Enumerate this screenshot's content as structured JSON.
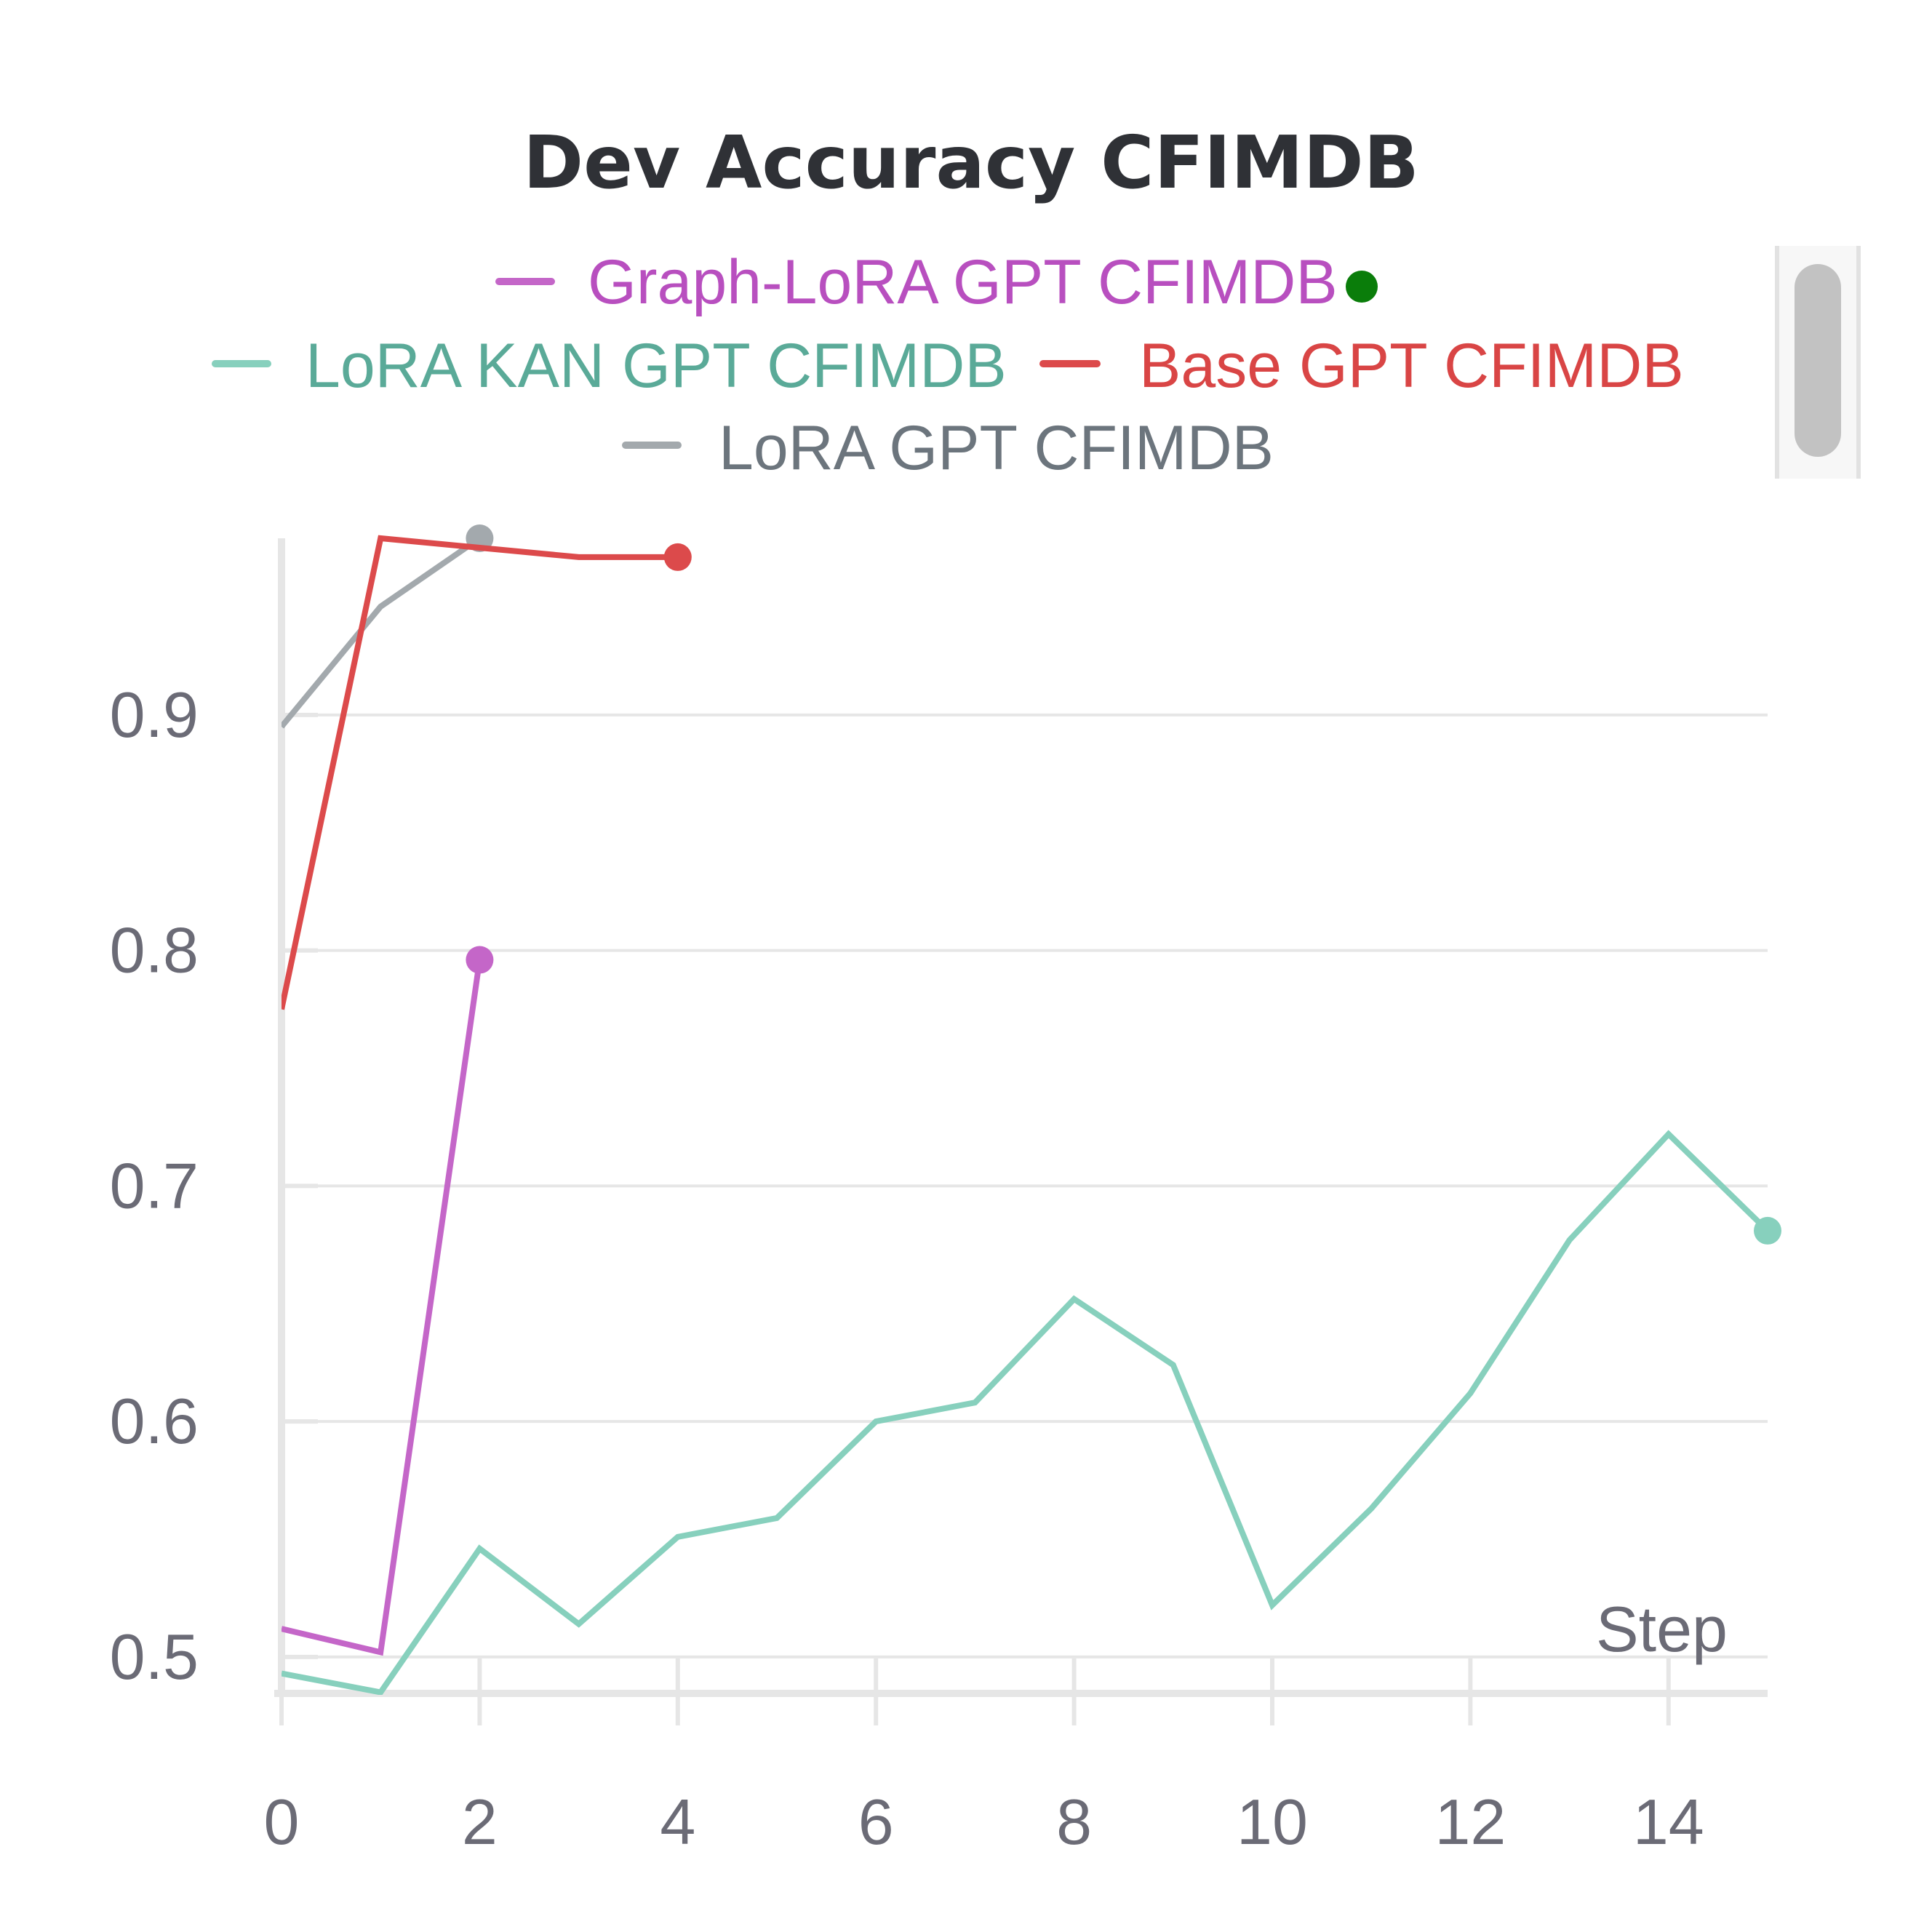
{
  "chart_data": {
    "type": "line",
    "title": "Dev Accuracy CFIMDB",
    "xlabel": "Step",
    "ylabel": "",
    "xlim": [
      0,
      15
    ],
    "ylim": [
      0.487,
      0.975
    ],
    "x_ticks": [
      0,
      2,
      4,
      6,
      8,
      10,
      12,
      14
    ],
    "y_ticks": [
      0.5,
      0.6,
      0.7,
      0.8,
      0.9
    ],
    "y_tick_labels": [
      "0.5",
      "0.6",
      "0.7",
      "0.8",
      "0.9"
    ],
    "grid": true,
    "legend_position": "top",
    "legend_status_dot_color": "#0a7d0a",
    "series": [
      {
        "name": "Graph-LoRA GPT CFIMDB",
        "color": "#c466c8",
        "text_color": "#b84fbf",
        "x": [
          0,
          1,
          2
        ],
        "y": [
          0.512,
          0.502,
          0.796
        ]
      },
      {
        "name": "LoRA KAN GPT CFIMDB",
        "color": "#87d0bd",
        "text_color": "#5aaa98",
        "x": [
          0,
          1,
          2,
          3,
          4,
          5,
          6,
          7,
          8,
          9,
          10,
          11,
          12,
          13,
          14,
          15
        ],
        "y": [
          0.493,
          0.485,
          0.546,
          0.514,
          0.551,
          0.559,
          0.6,
          0.608,
          0.652,
          0.624,
          0.522,
          0.563,
          0.612,
          0.677,
          0.722,
          0.681
        ]
      },
      {
        "name": "Base GPT CFIMDB",
        "color": "#dc4a4b",
        "text_color": "#d94545",
        "x": [
          0,
          1,
          2,
          3,
          4
        ],
        "y": [
          0.775,
          0.975,
          0.971,
          0.967,
          0.967
        ]
      },
      {
        "name": "LoRA GPT CFIMDB",
        "color": "#a3a9ad",
        "text_color": "#6c757d",
        "x": [
          0,
          1,
          2
        ],
        "y": [
          0.895,
          0.946,
          0.975
        ]
      }
    ]
  }
}
